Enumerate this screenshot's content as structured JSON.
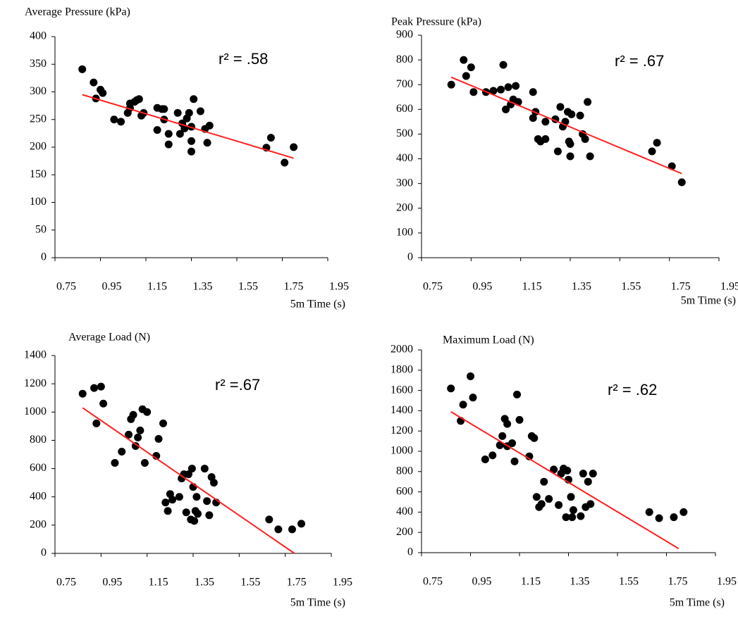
{
  "chart_data": [
    {
      "type": "scatter",
      "title": "Average Pressure (kPa)",
      "xlabel": "5m Time (s)",
      "annotation": "r² = .58",
      "xlim": [
        0.75,
        1.95
      ],
      "xticks": [
        0.75,
        0.95,
        1.15,
        1.35,
        1.55,
        1.75,
        1.95
      ],
      "ylim": [
        0,
        400
      ],
      "yticks": [
        0,
        50,
        100,
        150,
        200,
        250,
        300,
        350,
        400
      ],
      "color": "#000000",
      "x": [
        0.87,
        0.92,
        0.93,
        0.95,
        0.96,
        1.01,
        1.04,
        1.07,
        1.08,
        1.08,
        1.1,
        1.11,
        1.12,
        1.13,
        1.14,
        1.2,
        1.2,
        1.22,
        1.23,
        1.23,
        1.25,
        1.25,
        1.29,
        1.3,
        1.31,
        1.32,
        1.33,
        1.34,
        1.35,
        1.35,
        1.36,
        1.35,
        1.39,
        1.41,
        1.42,
        1.43,
        1.68,
        1.7,
        1.76,
        1.8
      ],
      "y": [
        341,
        317,
        288,
        304,
        298,
        250,
        246,
        262,
        271,
        279,
        282,
        285,
        287,
        257,
        262,
        271,
        231,
        269,
        250,
        269,
        224,
        205,
        262,
        224,
        243,
        234,
        252,
        262,
        237,
        211,
        287,
        192,
        265,
        233,
        208,
        239,
        199,
        217,
        172,
        200
      ],
      "trendline": {
        "color": "#ff2020",
        "x": [
          0.87,
          1.8
        ],
        "y": [
          295,
          180
        ]
      }
    },
    {
      "type": "scatter",
      "title": "Peak Pressure (kPa)",
      "xlabel": "5m Time (s)",
      "annotation": "r² = .67",
      "xlim": [
        0.75,
        1.95
      ],
      "xticks": [
        0.75,
        0.95,
        1.15,
        1.35,
        1.55,
        1.75,
        1.95
      ],
      "ylim": [
        0,
        900
      ],
      "yticks": [
        0,
        100,
        200,
        300,
        400,
        500,
        600,
        700,
        800,
        900
      ],
      "color": "#000000",
      "x": [
        0.87,
        0.92,
        0.93,
        0.95,
        0.96,
        1.01,
        1.04,
        1.07,
        1.08,
        1.09,
        1.1,
        1.11,
        1.12,
        1.13,
        1.14,
        1.2,
        1.2,
        1.21,
        1.22,
        1.23,
        1.25,
        1.25,
        1.29,
        1.3,
        1.31,
        1.32,
        1.33,
        1.34,
        1.345,
        1.35,
        1.355,
        1.35,
        1.39,
        1.4,
        1.41,
        1.42,
        1.43,
        1.68,
        1.7,
        1.76,
        1.8
      ],
      "y": [
        700,
        800,
        735,
        770,
        670,
        670,
        675,
        680,
        780,
        600,
        690,
        620,
        640,
        695,
        630,
        565,
        670,
        590,
        480,
        470,
        550,
        480,
        560,
        430,
        610,
        530,
        550,
        590,
        470,
        410,
        580,
        460,
        575,
        500,
        480,
        630,
        410,
        430,
        465,
        370,
        305
      ],
      "trendline": {
        "color": "#ff2020",
        "x": [
          0.87,
          1.8
        ],
        "y": [
          730,
          340
        ]
      }
    },
    {
      "type": "scatter",
      "title": "Average Load (N)",
      "xlabel": "5m Time (s)",
      "annotation": "r² =.67",
      "xlim": [
        0.75,
        1.95
      ],
      "xticks": [
        0.75,
        0.95,
        1.15,
        1.35,
        1.55,
        1.75,
        1.95
      ],
      "ylim": [
        0,
        1400
      ],
      "yticks": [
        0,
        200,
        400,
        600,
        800,
        1000,
        1200,
        1400
      ],
      "color": "#000000",
      "x": [
        0.87,
        0.92,
        0.93,
        0.95,
        0.96,
        1.01,
        1.04,
        1.07,
        1.08,
        1.09,
        1.1,
        1.11,
        1.12,
        1.13,
        1.14,
        1.15,
        1.19,
        1.2,
        1.22,
        1.23,
        1.24,
        1.25,
        1.26,
        1.29,
        1.3,
        1.31,
        1.32,
        1.33,
        1.34,
        1.345,
        1.35,
        1.355,
        1.36,
        1.365,
        1.37,
        1.4,
        1.41,
        1.42,
        1.43,
        1.44,
        1.45,
        1.68,
        1.72,
        1.78,
        1.82
      ],
      "y": [
        1130,
        1170,
        920,
        1180,
        1060,
        640,
        720,
        840,
        950,
        980,
        760,
        820,
        870,
        1020,
        640,
        1000,
        690,
        810,
        920,
        360,
        300,
        420,
        380,
        400,
        530,
        560,
        290,
        560,
        240,
        600,
        470,
        230,
        300,
        400,
        280,
        600,
        370,
        270,
        540,
        500,
        360,
        240,
        170,
        170,
        210
      ],
      "trendline": {
        "color": "#ff2020",
        "x": [
          0.87,
          1.79
        ],
        "y": [
          1030,
          0
        ]
      }
    },
    {
      "type": "scatter",
      "title": "Maximum Load (N)",
      "xlabel": "5m Time (s)",
      "annotation": "r² = .62",
      "xlim": [
        0.75,
        1.95
      ],
      "xticks": [
        0.75,
        0.95,
        1.15,
        1.35,
        1.55,
        1.75,
        1.95
      ],
      "ylim": [
        0,
        2000
      ],
      "yticks": [
        0,
        200,
        400,
        600,
        800,
        1000,
        1200,
        1400,
        1600,
        1800,
        2000
      ],
      "color": "#000000",
      "x": [
        0.87,
        0.91,
        0.92,
        0.95,
        0.96,
        1.01,
        1.04,
        1.07,
        1.08,
        1.09,
        1.1,
        1.1,
        1.12,
        1.13,
        1.14,
        1.15,
        1.19,
        1.2,
        1.21,
        1.22,
        1.23,
        1.24,
        1.25,
        1.27,
        1.29,
        1.31,
        1.32,
        1.33,
        1.34,
        1.345,
        1.35,
        1.36,
        1.365,
        1.37,
        1.4,
        1.41,
        1.42,
        1.43,
        1.44,
        1.45,
        1.68,
        1.72,
        1.78,
        1.82
      ],
      "y": [
        1620,
        1300,
        1460,
        1740,
        1530,
        920,
        960,
        1060,
        1150,
        1320,
        1270,
        1050,
        1080,
        900,
        1560,
        1310,
        950,
        1150,
        1130,
        550,
        450,
        480,
        700,
        530,
        820,
        470,
        780,
        830,
        350,
        810,
        720,
        550,
        350,
        420,
        360,
        780,
        450,
        700,
        480,
        780,
        400,
        340,
        350,
        400
      ],
      "trendline": {
        "color": "#ff2020",
        "x": [
          0.87,
          1.8
        ],
        "y": [
          1390,
          40
        ]
      }
    }
  ]
}
